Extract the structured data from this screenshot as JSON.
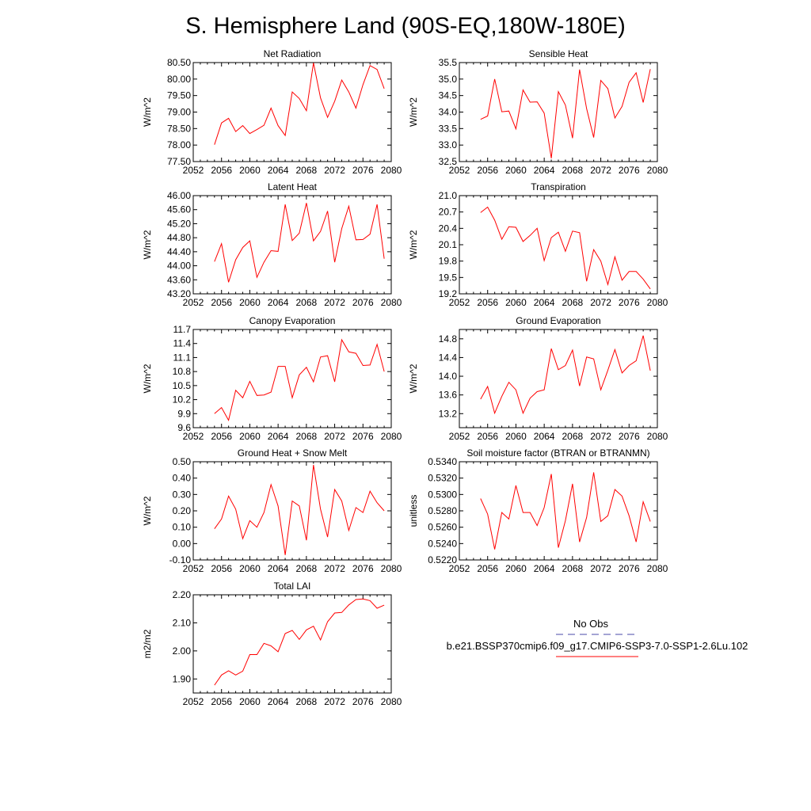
{
  "figure_title": "S. Hemisphere Land (90S-EQ,180W-180E)",
  "colors": {
    "model_line": "#ff0000",
    "obs_line": "#4a4aa8",
    "axes": "#000000"
  },
  "legend": {
    "entries": [
      {
        "label": "No Obs",
        "style": "dashed",
        "color": "#4a4aa8"
      },
      {
        "label": "b.e21.BSSP370cmip6.f09_g17.CMIP6-SSP3-7.0-SSP1-2.6Lu.102",
        "style": "solid",
        "color": "#ff0000"
      }
    ]
  },
  "chart_data": [
    {
      "type": "line",
      "title": "Net Radiation",
      "ylabel": "W/m^2",
      "xlim": [
        2052,
        2080
      ],
      "xticks": [
        "2052",
        "2056",
        "2060",
        "2064",
        "2068",
        "2072",
        "2076",
        "2080"
      ],
      "ylim": [
        77.5,
        80.5
      ],
      "yticks": [
        "77.50",
        "78.00",
        "78.50",
        "79.00",
        "79.50",
        "80.00",
        "80.50"
      ],
      "series": [
        {
          "x": [
            2055,
            2056,
            2057,
            2058,
            2059,
            2060,
            2061,
            2062,
            2063,
            2064,
            2065,
            2066,
            2067,
            2068,
            2069,
            2070,
            2071,
            2072,
            2073,
            2074,
            2075,
            2076,
            2077,
            2078,
            2079
          ],
          "values": [
            78.01,
            78.67,
            78.81,
            78.41,
            78.59,
            78.35,
            78.47,
            78.6,
            79.12,
            78.59,
            78.29,
            79.61,
            79.41,
            79.04,
            80.49,
            79.43,
            78.84,
            79.33,
            79.97,
            79.61,
            79.12,
            79.83,
            80.41,
            80.29,
            79.71
          ]
        }
      ]
    },
    {
      "type": "line",
      "title": "Sensible Heat",
      "ylabel": "W/m^2",
      "xlim": [
        2052,
        2080
      ],
      "xticks": [
        "2052",
        "2056",
        "2060",
        "2064",
        "2068",
        "2072",
        "2076",
        "2080"
      ],
      "ylim": [
        32.5,
        35.5
      ],
      "yticks": [
        "32.5",
        "33.0",
        "33.5",
        "34.0",
        "34.5",
        "35.0",
        "35.5"
      ],
      "series": [
        {
          "x": [
            2055,
            2056,
            2057,
            2058,
            2059,
            2060,
            2061,
            2062,
            2063,
            2064,
            2065,
            2066,
            2067,
            2068,
            2069,
            2070,
            2071,
            2072,
            2073,
            2074,
            2075,
            2076,
            2077,
            2078,
            2079
          ],
          "values": [
            33.78,
            33.88,
            35.0,
            34.01,
            34.03,
            33.49,
            34.67,
            34.3,
            34.31,
            33.97,
            32.6,
            34.62,
            34.21,
            33.21,
            35.29,
            34.1,
            33.23,
            34.96,
            34.71,
            33.82,
            34.17,
            34.9,
            35.19,
            34.29,
            35.3
          ]
        }
      ]
    },
    {
      "type": "line",
      "title": "Latent Heat",
      "ylabel": "W/m^2",
      "xlim": [
        2052,
        2080
      ],
      "xticks": [
        "2052",
        "2056",
        "2060",
        "2064",
        "2068",
        "2072",
        "2076",
        "2080"
      ],
      "ylim": [
        43.2,
        46.0
      ],
      "yticks": [
        "43.20",
        "43.60",
        "44.00",
        "44.40",
        "44.80",
        "45.20",
        "45.60",
        "46.00"
      ],
      "series": [
        {
          "x": [
            2055,
            2056,
            2057,
            2058,
            2059,
            2060,
            2061,
            2062,
            2063,
            2064,
            2065,
            2066,
            2067,
            2068,
            2069,
            2070,
            2071,
            2072,
            2073,
            2074,
            2075,
            2076,
            2077,
            2078,
            2079
          ],
          "values": [
            44.12,
            44.63,
            43.53,
            44.17,
            44.52,
            44.71,
            43.67,
            44.1,
            44.43,
            44.41,
            45.75,
            44.72,
            44.93,
            45.79,
            44.71,
            44.98,
            45.56,
            44.1,
            45.06,
            45.7,
            44.74,
            44.75,
            44.9,
            45.75,
            44.2
          ]
        }
      ]
    },
    {
      "type": "line",
      "title": "Transpiration",
      "ylabel": "W/m^2",
      "xlim": [
        2052,
        2080
      ],
      "xticks": [
        "2052",
        "2056",
        "2060",
        "2064",
        "2068",
        "2072",
        "2076",
        "2080"
      ],
      "ylim": [
        19.2,
        21.0
      ],
      "yticks": [
        "19.2",
        "19.5",
        "19.8",
        "20.1",
        "20.4",
        "20.7",
        "21.0"
      ],
      "series": [
        {
          "x": [
            2055,
            2056,
            2057,
            2058,
            2059,
            2060,
            2061,
            2062,
            2063,
            2064,
            2065,
            2066,
            2067,
            2068,
            2069,
            2070,
            2071,
            2072,
            2073,
            2074,
            2075,
            2076,
            2077,
            2078,
            2079
          ],
          "values": [
            20.69,
            20.79,
            20.55,
            20.2,
            20.43,
            20.42,
            20.16,
            20.27,
            20.4,
            19.81,
            20.23,
            20.33,
            19.98,
            20.35,
            20.32,
            19.43,
            20.01,
            19.8,
            19.37,
            19.88,
            19.45,
            19.61,
            19.61,
            19.47,
            19.29
          ]
        }
      ]
    },
    {
      "type": "line",
      "title": "Canopy Evaporation",
      "ylabel": "W/m^2",
      "xlim": [
        2052,
        2080
      ],
      "xticks": [
        "2052",
        "2056",
        "2060",
        "2064",
        "2068",
        "2072",
        "2076",
        "2080"
      ],
      "ylim": [
        9.6,
        11.7
      ],
      "yticks": [
        "9.6",
        "9.9",
        "10.2",
        "10.5",
        "10.8",
        "11.1",
        "11.4",
        "11.7"
      ],
      "series": [
        {
          "x": [
            2055,
            2056,
            2057,
            2058,
            2059,
            2060,
            2061,
            2062,
            2063,
            2064,
            2065,
            2066,
            2067,
            2068,
            2069,
            2070,
            2071,
            2072,
            2073,
            2074,
            2075,
            2076,
            2077,
            2078,
            2079
          ],
          "values": [
            9.9,
            10.03,
            9.76,
            10.4,
            10.24,
            10.59,
            10.29,
            10.3,
            10.36,
            10.91,
            10.91,
            10.24,
            10.73,
            10.89,
            10.58,
            11.11,
            11.14,
            10.58,
            11.48,
            11.22,
            11.19,
            10.93,
            10.94,
            11.38,
            10.8
          ]
        }
      ]
    },
    {
      "type": "line",
      "title": "Ground Evaporation",
      "ylabel": "W/m^2",
      "xlim": [
        2052,
        2080
      ],
      "xticks": [
        "2052",
        "2056",
        "2060",
        "2064",
        "2068",
        "2072",
        "2076",
        "2080"
      ],
      "ylim": [
        12.9,
        15.0
      ],
      "yticks": [
        "13.2",
        "13.6",
        "14.0",
        "14.4",
        "14.8"
      ],
      "series": [
        {
          "x": [
            2055,
            2056,
            2057,
            2058,
            2059,
            2060,
            2061,
            2062,
            2063,
            2064,
            2065,
            2066,
            2067,
            2068,
            2069,
            2070,
            2071,
            2072,
            2073,
            2074,
            2075,
            2076,
            2077,
            2078,
            2079
          ],
          "values": [
            13.51,
            13.78,
            13.21,
            13.57,
            13.87,
            13.71,
            13.21,
            13.53,
            13.67,
            13.71,
            14.59,
            14.14,
            14.23,
            14.56,
            13.79,
            14.41,
            14.37,
            13.71,
            14.13,
            14.57,
            14.07,
            14.23,
            14.33,
            14.87,
            14.12
          ]
        }
      ]
    },
    {
      "type": "line",
      "title": "Ground Heat + Snow Melt",
      "ylabel": "W/m^2",
      "xlim": [
        2052,
        2080
      ],
      "xticks": [
        "2052",
        "2056",
        "2060",
        "2064",
        "2068",
        "2072",
        "2076",
        "2080"
      ],
      "ylim": [
        -0.1,
        0.5
      ],
      "yticks": [
        "-0.10",
        "0.00",
        "0.10",
        "0.20",
        "0.30",
        "0.40",
        "0.50"
      ],
      "series": [
        {
          "x": [
            2055,
            2056,
            2057,
            2058,
            2059,
            2060,
            2061,
            2062,
            2063,
            2064,
            2065,
            2066,
            2067,
            2068,
            2069,
            2070,
            2071,
            2072,
            2073,
            2074,
            2075,
            2076,
            2077,
            2078,
            2079
          ],
          "values": [
            0.09,
            0.15,
            0.29,
            0.21,
            0.03,
            0.14,
            0.1,
            0.19,
            0.36,
            0.23,
            -0.07,
            0.26,
            0.23,
            0.02,
            0.48,
            0.21,
            0.04,
            0.33,
            0.26,
            0.08,
            0.22,
            0.19,
            0.32,
            0.25,
            0.2
          ]
        }
      ]
    },
    {
      "type": "line",
      "title": "Soil moisture factor (BTRAN or BTRANMN)",
      "ylabel": "unitless",
      "xlim": [
        2052,
        2080
      ],
      "xticks": [
        "2052",
        "2056",
        "2060",
        "2064",
        "2068",
        "2072",
        "2076",
        "2080"
      ],
      "ylim": [
        0.522,
        0.534
      ],
      "yticks": [
        "0.5220",
        "0.5240",
        "0.5260",
        "0.5280",
        "0.5300",
        "0.5320",
        "0.5340"
      ],
      "series": [
        {
          "x": [
            2055,
            2056,
            2057,
            2058,
            2059,
            2060,
            2061,
            2062,
            2063,
            2064,
            2065,
            2066,
            2067,
            2068,
            2069,
            2070,
            2071,
            2072,
            2073,
            2074,
            2075,
            2076,
            2077,
            2078,
            2079
          ],
          "values": [
            0.5295,
            0.5276,
            0.5233,
            0.5278,
            0.527,
            0.5311,
            0.5278,
            0.5278,
            0.5262,
            0.5284,
            0.5325,
            0.5235,
            0.5268,
            0.5313,
            0.5242,
            0.5272,
            0.5327,
            0.5267,
            0.5274,
            0.5306,
            0.5298,
            0.5274,
            0.5242,
            0.5291,
            0.5267
          ]
        }
      ]
    },
    {
      "type": "line",
      "title": "Total LAI",
      "ylabel": "m2/m2",
      "xlim": [
        2052,
        2080
      ],
      "xticks": [
        "2052",
        "2056",
        "2060",
        "2064",
        "2068",
        "2072",
        "2076",
        "2080"
      ],
      "ylim": [
        1.85,
        2.2
      ],
      "yticks": [
        "1.90",
        "2.00",
        "2.10",
        "2.20"
      ],
      "series": [
        {
          "x": [
            2055,
            2056,
            2057,
            2058,
            2059,
            2060,
            2061,
            2062,
            2063,
            2064,
            2065,
            2066,
            2067,
            2068,
            2069,
            2070,
            2071,
            2072,
            2073,
            2074,
            2075,
            2076,
            2077,
            2078,
            2079
          ],
          "values": [
            1.878,
            1.914,
            1.929,
            1.914,
            1.928,
            1.987,
            1.987,
            2.027,
            2.018,
            1.997,
            2.062,
            2.073,
            2.041,
            2.075,
            2.088,
            2.039,
            2.104,
            2.135,
            2.137,
            2.164,
            2.183,
            2.185,
            2.179,
            2.152,
            2.163
          ]
        }
      ]
    }
  ]
}
